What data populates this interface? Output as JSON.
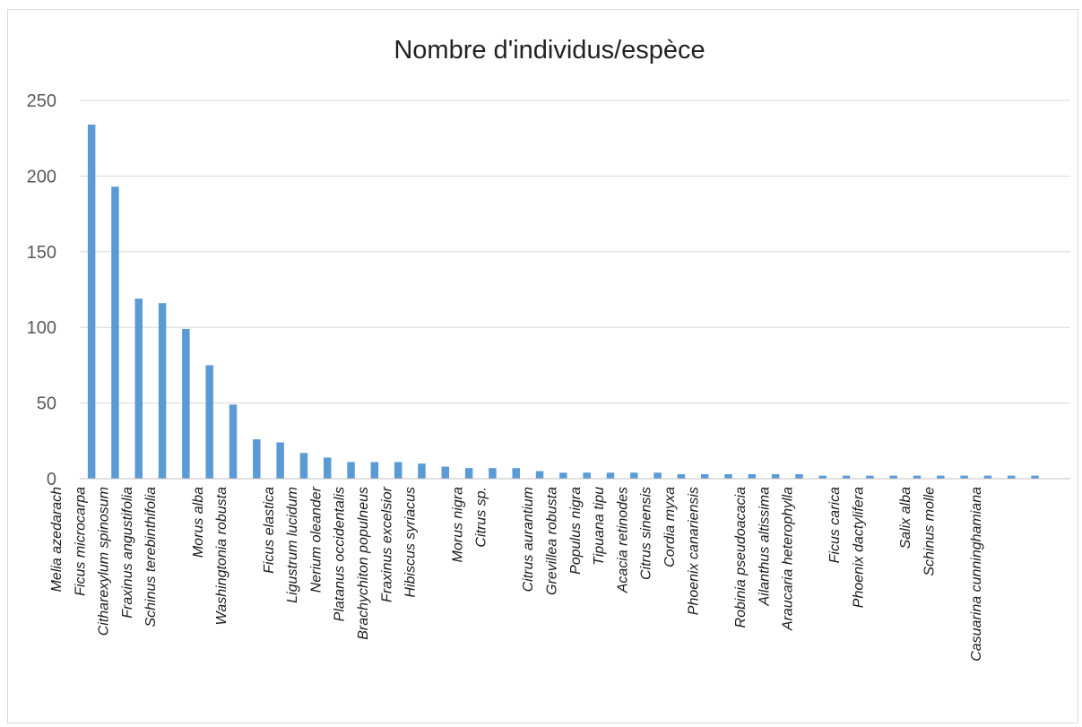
{
  "chart_data": {
    "type": "bar",
    "title": "Nombre d'individus/espèce",
    "xlabel": "",
    "ylabel": "",
    "ylim": [
      0,
      250
    ],
    "y_ticks": [
      "0",
      "50",
      "100",
      "150",
      "200",
      "250"
    ],
    "grid": true,
    "legend": "none",
    "bar_color": "#5b9bd5",
    "categories": [
      "Melia azedarach",
      "Ficus microcarpa",
      "Citharexylum spinosum",
      "Fraxinus angustifolia",
      "Schinus terebinthifolia",
      "",
      "Morus alba",
      "Washingtonia robusta",
      "",
      "Ficus elastica",
      "Ligustrum lucidum",
      "Nerium oleander",
      "Platanus occidentalis",
      "Brachychiton populneus",
      "Fraxinus excelsior",
      "Hibiscus syriacus",
      "",
      "Morus nigra",
      "Citrus sp.",
      "",
      "Citrus aurantium",
      "Grevillea robusta",
      "Populus nigra",
      "Tipuana  tipu",
      "Acacia retinodes",
      "Citrus sinensis",
      "Cordia myxa",
      "Phoenix canariensis",
      "",
      "Robinia pseudoacacia",
      "Ailanthus altissima",
      "Araucaria heterophylla",
      "",
      "Ficus carica",
      "Phoenix dactylifera",
      "",
      "Salix alba",
      "Schinus molle",
      "",
      "Casuarina cunninghamiana",
      "",
      ""
    ],
    "values": [
      234,
      193,
      119,
      116,
      99,
      75,
      49,
      26,
      24,
      17,
      14,
      11,
      11,
      11,
      10,
      8,
      7,
      7,
      7,
      5,
      4,
      4,
      4,
      4,
      4,
      3,
      3,
      3,
      3,
      3,
      3,
      2,
      2,
      2,
      2,
      2,
      2,
      2,
      2,
      2,
      2,
      0
    ]
  }
}
